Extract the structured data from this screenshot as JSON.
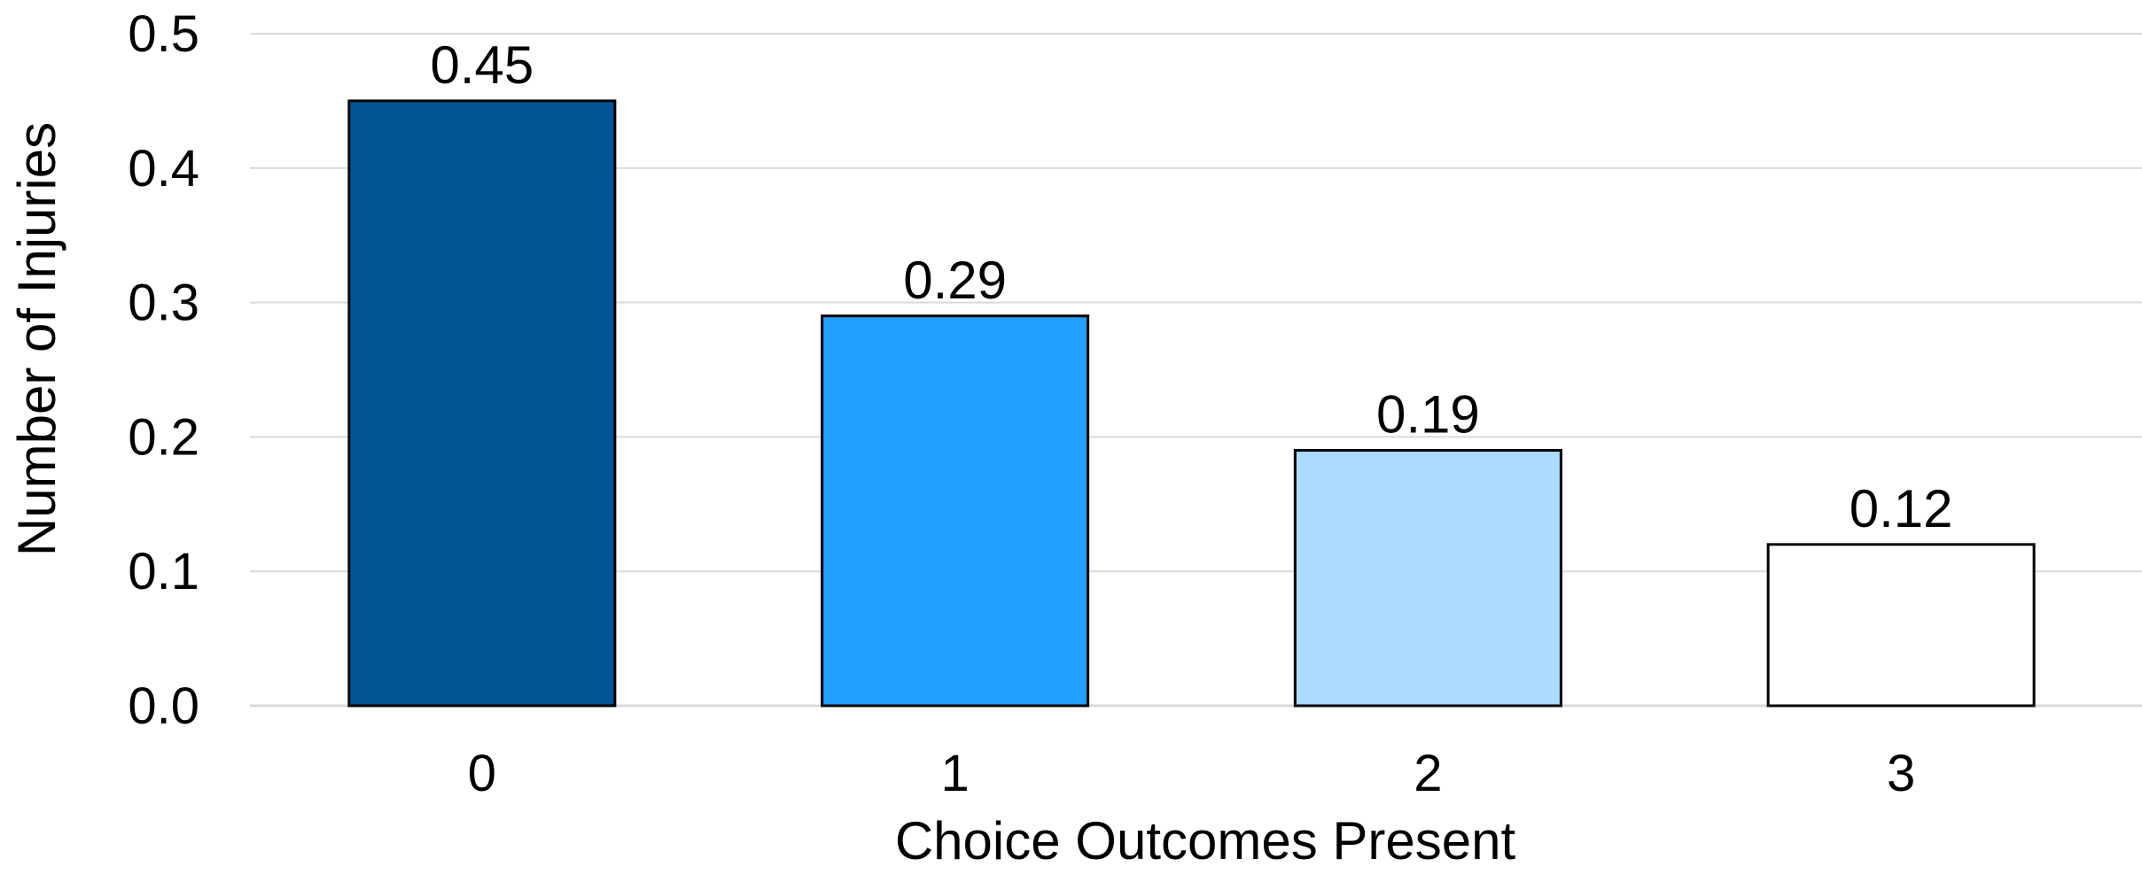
{
  "chart_data": {
    "type": "bar",
    "title": "",
    "xlabel": "Choice Outcomes Present",
    "ylabel": "Number of Injuries",
    "categories": [
      "0",
      "1",
      "2",
      "3"
    ],
    "values": [
      0.45,
      0.29,
      0.19,
      0.12
    ],
    "data_labels": [
      "0.45",
      "0.29",
      "0.19",
      "0.12"
    ],
    "bar_colors": [
      "#005595",
      "#229FFF",
      "#ABDBFF",
      "#FFFFFF"
    ],
    "bar_outline_color": "#000000",
    "ylim": [
      0,
      0.5
    ],
    "yticks": [
      0.0,
      0.1,
      0.2,
      0.3,
      0.4,
      0.5
    ],
    "ytick_labels": [
      "0.0",
      "0.1",
      "0.2",
      "0.3",
      "0.4",
      "0.5"
    ],
    "grid": true,
    "grid_color": "#D9D9D9",
    "legend": "none"
  }
}
